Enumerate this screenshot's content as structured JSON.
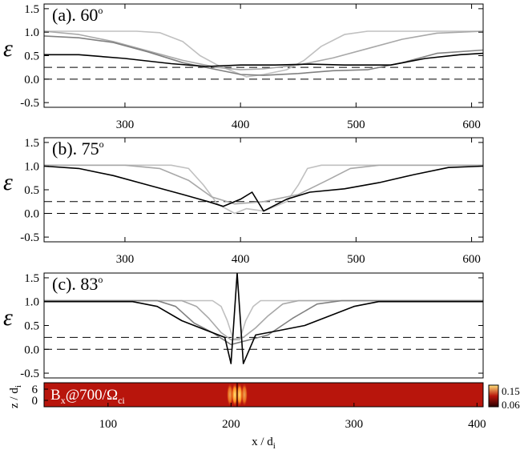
{
  "chart_data": [
    {
      "type": "line",
      "panel_label": "(a). 60",
      "degree_symbol": "o",
      "ylabel": "ε",
      "ylim": [
        -0.6,
        1.6
      ],
      "xlim": [
        230,
        610
      ],
      "yticks": [
        "1.5",
        "1.0",
        "0.5",
        "0.0",
        "-0.5"
      ],
      "ytick_values": [
        1.5,
        1.0,
        0.5,
        0.0,
        -0.5
      ],
      "xticks": [
        "300",
        "400",
        "500",
        "600"
      ],
      "xtick_values": [
        300,
        400,
        500,
        600
      ],
      "reference_lines": [
        0.25,
        0.0
      ],
      "series": [
        {
          "color": "#c0c0c0",
          "x": [
            230,
            310,
            330,
            350,
            365,
            380,
            395,
            405,
            420,
            440,
            455,
            470,
            490,
            510,
            530,
            610
          ],
          "y": [
            1.02,
            1.02,
            0.99,
            0.8,
            0.5,
            0.3,
            0.15,
            0.05,
            0.1,
            0.2,
            0.4,
            0.7,
            0.95,
            1.02,
            1.02,
            1.02
          ]
        },
        {
          "color": "#a8a8a8",
          "x": [
            230,
            260,
            290,
            320,
            350,
            380,
            400,
            420,
            450,
            480,
            510,
            540,
            570,
            610
          ],
          "y": [
            1.02,
            0.95,
            0.8,
            0.6,
            0.4,
            0.25,
            0.2,
            0.22,
            0.3,
            0.45,
            0.65,
            0.85,
            0.98,
            1.02
          ]
        },
        {
          "color": "#808080",
          "x": [
            230,
            260,
            290,
            320,
            350,
            380,
            400,
            420,
            450,
            480,
            510,
            540,
            570,
            610
          ],
          "y": [
            0.92,
            0.88,
            0.78,
            0.58,
            0.35,
            0.2,
            0.1,
            0.08,
            0.12,
            0.18,
            0.2,
            0.35,
            0.55,
            0.62
          ]
        },
        {
          "color": "#000000",
          "x": [
            230,
            260,
            300,
            340,
            370,
            400,
            430,
            460,
            490,
            530,
            560,
            590,
            610
          ],
          "y": [
            0.52,
            0.52,
            0.44,
            0.33,
            0.27,
            0.3,
            0.3,
            0.32,
            0.3,
            0.3,
            0.44,
            0.52,
            0.55
          ]
        }
      ]
    },
    {
      "type": "line",
      "panel_label": "(b). 75",
      "degree_symbol": "o",
      "ylabel": "ε",
      "ylim": [
        -0.6,
        1.6
      ],
      "xlim": [
        230,
        610
      ],
      "yticks": [
        "1.5",
        "1.0",
        "0.5",
        "0.0",
        "-0.5"
      ],
      "ytick_values": [
        1.5,
        1.0,
        0.5,
        0.0,
        -0.5
      ],
      "xticks": [
        "300",
        "400",
        "500",
        "600"
      ],
      "xtick_values": [
        300,
        400,
        500,
        600
      ],
      "reference_lines": [
        0.25,
        0.0
      ],
      "series": [
        {
          "color": "#c0c0c0",
          "x": [
            230,
            340,
            355,
            368,
            380,
            395,
            405,
            420,
            440,
            450,
            458,
            470,
            610
          ],
          "y": [
            1.02,
            1.02,
            0.95,
            0.6,
            0.2,
            0.0,
            0.1,
            0.05,
            0.25,
            0.6,
            0.95,
            1.02,
            1.02
          ]
        },
        {
          "color": "#a8a8a8",
          "x": [
            230,
            300,
            330,
            355,
            375,
            395,
            420,
            450,
            475,
            495,
            520,
            610
          ],
          "y": [
            1.02,
            1.02,
            0.95,
            0.7,
            0.35,
            0.2,
            0.25,
            0.4,
            0.7,
            0.95,
            1.02,
            1.02
          ]
        },
        {
          "color": "#000000",
          "x": [
            230,
            260,
            290,
            320,
            350,
            372,
            385,
            400,
            410,
            420,
            440,
            460,
            490,
            520,
            550,
            580,
            610
          ],
          "y": [
            1.0,
            0.95,
            0.8,
            0.6,
            0.4,
            0.25,
            0.15,
            0.3,
            0.45,
            0.05,
            0.3,
            0.45,
            0.52,
            0.65,
            0.82,
            0.97,
            1.0
          ]
        }
      ]
    },
    {
      "type": "line",
      "panel_label": "(c). 83",
      "degree_symbol": "o",
      "ylabel": "ε",
      "ylim": [
        -0.6,
        1.6
      ],
      "xlim": [
        48,
        405
      ],
      "yticks": [
        "1.5",
        "1.0",
        "0.5",
        "0.0",
        "-0.5"
      ],
      "ytick_values": [
        1.5,
        1.0,
        0.5,
        0.0,
        -0.5
      ],
      "reference_lines": [
        0.25,
        0.0
      ],
      "series": [
        {
          "color": "#c0c0c0",
          "x": [
            48,
            185,
            192,
            197,
            202,
            207,
            212,
            218,
            224,
            405
          ],
          "y": [
            1.02,
            1.02,
            0.9,
            0.6,
            0.2,
            0.2,
            0.6,
            0.9,
            1.02,
            1.02
          ]
        },
        {
          "color": "#a8a8a8",
          "x": [
            48,
            160,
            172,
            182,
            192,
            200,
            210,
            220,
            230,
            242,
            255,
            405
          ],
          "y": [
            1.02,
            1.02,
            0.9,
            0.65,
            0.35,
            0.2,
            0.25,
            0.45,
            0.7,
            0.95,
            1.02,
            1.02
          ]
        },
        {
          "color": "#808080",
          "x": [
            48,
            140,
            155,
            170,
            185,
            200,
            215,
            230,
            250,
            270,
            290,
            405
          ],
          "y": [
            1.02,
            1.02,
            0.9,
            0.55,
            0.35,
            0.1,
            0.2,
            0.3,
            0.65,
            0.95,
            1.02,
            1.02
          ]
        },
        {
          "color": "#000000",
          "x": [
            48,
            120,
            140,
            160,
            180,
            195,
            200,
            205,
            210,
            220,
            240,
            260,
            280,
            300,
            320,
            405
          ],
          "y": [
            1.0,
            1.0,
            0.9,
            0.6,
            0.4,
            0.25,
            -0.3,
            1.6,
            -0.3,
            0.3,
            0.4,
            0.5,
            0.7,
            0.9,
            1.0,
            1.0
          ]
        }
      ]
    },
    {
      "type": "heatmap",
      "label": "B",
      "label_sub": "x",
      "label_rest": "@700/Ω",
      "label_rest_sub": "ci",
      "ylabel": "z / d",
      "ylabel_sub": "i",
      "xlabel": "x / d",
      "xlabel_sub": "i",
      "xlim": [
        48,
        405
      ],
      "xticks": [
        "100",
        "200",
        "300",
        "400"
      ],
      "xtick_values": [
        100,
        200,
        300,
        400
      ],
      "yticks": [
        "6",
        "0"
      ],
      "ytick_values": [
        6,
        0
      ],
      "colorbar_ticks": [
        "0.15",
        "0.06"
      ],
      "colors": {
        "base": "#b8150c",
        "dark": "#2a0000",
        "bright": "#ffe27a"
      }
    }
  ]
}
